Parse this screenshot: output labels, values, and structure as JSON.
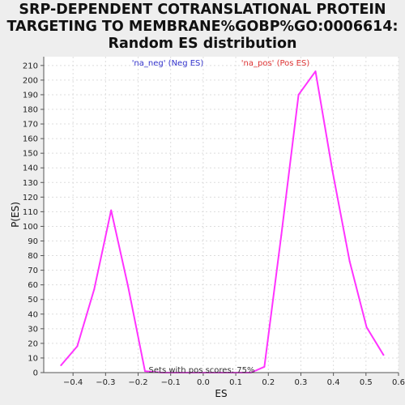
{
  "chart_data": {
    "type": "line",
    "title_lines": [
      "SRP-DEPENDENT COTRANSLATIONAL PROTEIN",
      "TARGETING TO MEMBRANE%GOBP%GO:0006614:",
      "Random ES distribution"
    ],
    "xlabel": "ES",
    "ylabel": "P(ES)",
    "xlim": [
      -0.49,
      0.6
    ],
    "ylim": [
      0,
      216
    ],
    "x_ticks": [
      -0.4,
      -0.3,
      -0.2,
      -0.1,
      0.0,
      0.1,
      0.2,
      0.3,
      0.4,
      0.5,
      0.6
    ],
    "x_tick_labels": [
      "−0.4",
      "−0.3",
      "−0.2",
      "−0.1",
      "0.0",
      "0.1",
      "0.2",
      "0.3",
      "0.4",
      "0.5",
      "0.6"
    ],
    "y_ticks": [
      0,
      10,
      20,
      30,
      40,
      50,
      60,
      70,
      80,
      90,
      100,
      110,
      120,
      130,
      140,
      150,
      160,
      170,
      180,
      190,
      200,
      210
    ],
    "grid": true,
    "series": [
      {
        "color": "#ff33ff",
        "x": [
          -0.437,
          -0.387,
          -0.335,
          -0.283,
          -0.231,
          -0.179,
          -0.127,
          0.147,
          0.188,
          0.24,
          0.293,
          0.345,
          0.397,
          0.45,
          0.502,
          0.554
        ],
        "y": [
          5,
          18,
          57,
          111,
          59,
          1,
          0,
          0,
          4,
          94,
          190,
          206,
          138,
          76,
          31,
          12
        ]
      }
    ],
    "legend": [
      {
        "label": "'na_neg' (Neg ES)",
        "color": "#3333cc"
      },
      {
        "label": "'na_pos' (Pos ES)",
        "color": "#dd3333"
      }
    ],
    "annotation": "Sets with pos scores: 75%"
  }
}
